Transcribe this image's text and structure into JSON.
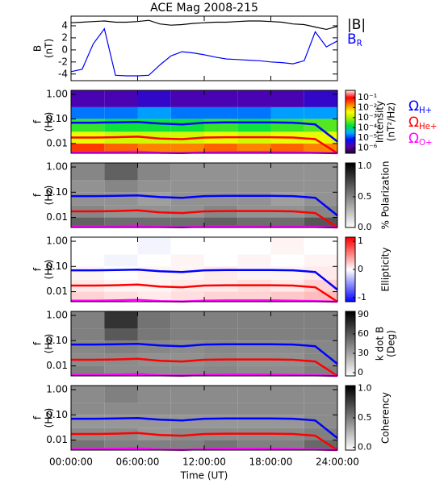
{
  "chart_data": [
    {
      "type": "line",
      "title": "ACE Mag 2008-215",
      "ylabel": [
        "B",
        "(nT)"
      ],
      "ylim": [
        -5.1,
        5.6
      ],
      "yticks": [
        -4,
        -2,
        0,
        2,
        4
      ],
      "x": [
        0,
        1,
        2,
        3,
        4,
        5,
        6,
        7,
        8,
        9,
        10,
        11,
        12,
        13,
        14,
        15,
        16,
        17,
        18,
        19,
        20,
        21,
        22,
        23,
        24
      ],
      "series": [
        {
          "name": "|B|",
          "color": "#000000",
          "values": [
            4.5,
            4.6,
            4.7,
            4.8,
            4.6,
            4.6,
            4.7,
            4.9,
            4.3,
            4.1,
            4.2,
            4.4,
            4.5,
            4.6,
            4.6,
            4.7,
            4.8,
            4.8,
            4.7,
            4.6,
            4.3,
            4.2,
            3.8,
            3.4,
            3.9
          ]
        },
        {
          "name": "B",
          "sub": "R",
          "color": "#0000ff",
          "values": [
            -3.6,
            -3.2,
            1,
            3.5,
            -4.2,
            -4.3,
            -4.3,
            -4.2,
            -2.5,
            -1,
            -0.3,
            -0.5,
            -0.8,
            -1.2,
            -1.5,
            -1.6,
            -1.7,
            -1.8,
            -2,
            -2.1,
            -2.3,
            -1.8,
            3,
            0.5,
            1.5
          ]
        }
      ]
    },
    {
      "type": "heatmap",
      "ylabel": [
        "f",
        "(Hz)"
      ],
      "ylog": true,
      "ylim": [
        0.004,
        1.45
      ],
      "yticks": [
        {
          "value": 0.01,
          "label": "0.01"
        },
        {
          "value": 0.1,
          "label": "0.10"
        },
        {
          "value": 1,
          "label": "1.00"
        }
      ],
      "xbins": [
        0,
        3,
        6,
        9,
        12,
        15,
        18,
        21,
        24
      ],
      "ybins": [
        0.004,
        0.01,
        0.03,
        0.1,
        0.3,
        1.45
      ],
      "z": [
        [
          0.05,
          0.03,
          0.02,
          0.02,
          0.03,
          0.02,
          0.03,
          0.02
        ],
        [
          0.003,
          0.002,
          0.002,
          0.002,
          0.003,
          0.002,
          0.003,
          0.003
        ],
        [
          0.0003,
          0.0002,
          0.0002,
          0.0002,
          0.0003,
          0.0002,
          0.0003,
          0.0004
        ],
        [
          2e-05,
          2e-05,
          3e-05,
          2e-05,
          2e-05,
          2e-05,
          3e-05,
          3e-05
        ],
        [
          2e-06,
          2e-06,
          3e-06,
          2e-06,
          2e-06,
          2e-06,
          2e-06,
          3e-06
        ]
      ],
      "colormap": "rainbow",
      "zlog": true,
      "zlim": [
        3e-07,
        0.5
      ],
      "zlabel": [
        "Intensity",
        "(nT²/Hz)"
      ],
      "zticks": [
        {
          "value": 1e-06,
          "label": "10⁻⁶"
        },
        {
          "value": 1e-05,
          "label": "10⁻⁵"
        },
        {
          "value": 0.0001,
          "label": "10⁻⁴"
        },
        {
          "value": 0.001,
          "label": "10⁻³"
        },
        {
          "value": 0.01,
          "label": "10⁻²"
        },
        {
          "value": 0.1,
          "label": "10⁻¹"
        }
      ],
      "lines_x": [
        0,
        2,
        4,
        6,
        8,
        10,
        12,
        14,
        16,
        18,
        20,
        22,
        24
      ],
      "series": [
        {
          "name": "Ω",
          "sub": "H+",
          "color": "#0000ff",
          "values": [
            0.07,
            0.07,
            0.072,
            0.075,
            0.065,
            0.06,
            0.07,
            0.072,
            0.072,
            0.072,
            0.07,
            0.06,
            0.012
          ]
        },
        {
          "name": "Ω",
          "sub": "He+",
          "color": "#ff0000",
          "values": [
            0.0175,
            0.0175,
            0.018,
            0.019,
            0.016,
            0.015,
            0.0175,
            0.018,
            0.018,
            0.018,
            0.0175,
            0.015,
            0.004
          ]
        },
        {
          "name": "Ω",
          "sub": "O+",
          "color": "#ff00ff",
          "values": [
            0.0044,
            0.0044,
            0.0045,
            0.0047,
            0.0042,
            0.0041,
            0.0044,
            0.0045,
            0.0045,
            0.0045,
            0.0044,
            0.0042,
            0.004
          ]
        }
      ]
    },
    {
      "type": "heatmap",
      "ylabel": [
        "f",
        "(Hz)"
      ],
      "ylog": true,
      "ylim": [
        0.004,
        1.45
      ],
      "yticks": [
        {
          "value": 0.01,
          "label": "0.01"
        },
        {
          "value": 0.1,
          "label": "0.10"
        },
        {
          "value": 1,
          "label": "1.00"
        }
      ],
      "xbins": [
        0,
        3,
        6,
        9,
        12,
        15,
        18,
        21,
        24
      ],
      "ybins": [
        0.004,
        0.01,
        0.03,
        0.1,
        0.3,
        1.45
      ],
      "z": [
        [
          0.65,
          0.6,
          0.6,
          0.6,
          0.65,
          0.6,
          0.6,
          0.7
        ],
        [
          0.5,
          0.45,
          0.45,
          0.45,
          0.5,
          0.45,
          0.45,
          0.5
        ],
        [
          0.45,
          0.45,
          0.4,
          0.45,
          0.45,
          0.45,
          0.4,
          0.45
        ],
        [
          0.45,
          0.5,
          0.45,
          0.45,
          0.45,
          0.45,
          0.45,
          0.45
        ],
        [
          0.5,
          0.65,
          0.5,
          0.45,
          0.45,
          0.45,
          0.45,
          0.45
        ]
      ],
      "colormap": "gray",
      "zlim": [
        0,
        1.05
      ],
      "zlabel": [
        "% Polarization"
      ],
      "zticks": [
        {
          "value": 0,
          "label": "0.0"
        },
        {
          "value": 0.5,
          "label": "0.5"
        },
        {
          "value": 1,
          "label": "1.0"
        }
      ]
    },
    {
      "type": "heatmap",
      "ylabel": [
        "f",
        "(Hz)"
      ],
      "ylog": true,
      "ylim": [
        0.004,
        1.45
      ],
      "yticks": [
        {
          "value": 0.01,
          "label": "0.01"
        },
        {
          "value": 0.1,
          "label": "0.10"
        },
        {
          "value": 1,
          "label": "1.00"
        }
      ],
      "xbins": [
        0,
        3,
        6,
        9,
        12,
        15,
        18,
        21,
        24
      ],
      "ybins": [
        0.004,
        0.01,
        0.03,
        0.1,
        0.3,
        1.45
      ],
      "z": [
        [
          0.2,
          0.15,
          0.1,
          0.15,
          0.2,
          0.2,
          0.25,
          0.3
        ],
        [
          0.1,
          0.05,
          0.05,
          0.1,
          0.1,
          0.15,
          0.1,
          0.2
        ],
        [
          0.05,
          0,
          0.05,
          0.05,
          0.1,
          0.05,
          0.05,
          0.1
        ],
        [
          0,
          -0.05,
          0,
          0.05,
          0,
          0.05,
          0,
          0.05
        ],
        [
          0,
          0,
          -0.05,
          0,
          0,
          0,
          0.05,
          0
        ]
      ],
      "colormap": "bwr",
      "zlim": [
        -1.15,
        1.15
      ],
      "zlabel": [
        "Ellipticity"
      ],
      "zticks": [
        -1,
        0,
        1
      ]
    },
    {
      "type": "heatmap",
      "ylabel": [
        "f",
        "(Hz)"
      ],
      "ylog": true,
      "ylim": [
        0.004,
        1.45
      ],
      "yticks": [
        {
          "value": 0.01,
          "label": "0.01"
        },
        {
          "value": 0.1,
          "label": "0.10"
        },
        {
          "value": 1,
          "label": "1.00"
        }
      ],
      "xbins": [
        0,
        3,
        6,
        9,
        12,
        15,
        18,
        21,
        24
      ],
      "ybins": [
        0.004,
        0.01,
        0.03,
        0.1,
        0.3,
        1.45
      ],
      "z": [
        [
          45,
          40,
          40,
          40,
          42,
          40,
          40,
          45
        ],
        [
          40,
          40,
          38,
          38,
          40,
          38,
          38,
          42
        ],
        [
          42,
          45,
          42,
          40,
          42,
          40,
          40,
          42
        ],
        [
          45,
          60,
          48,
          45,
          45,
          45,
          45,
          45
        ],
        [
          45,
          75,
          50,
          45,
          45,
          45,
          45,
          45
        ]
      ],
      "colormap": "gray",
      "zlim": [
        -5,
        95
      ],
      "zlabel": [
        "k dot B",
        "(Deg)"
      ],
      "zticks": [
        0,
        30,
        60,
        90
      ]
    },
    {
      "type": "heatmap",
      "ylabel": [
        "f",
        "(Hz)"
      ],
      "ylog": true,
      "ylim": [
        0.004,
        1.45
      ],
      "yticks": [
        {
          "value": 0.01,
          "label": "0.01"
        },
        {
          "value": 0.1,
          "label": "0.10"
        },
        {
          "value": 1,
          "label": "1.00"
        }
      ],
      "xbins": [
        0,
        3,
        6,
        9,
        12,
        15,
        18,
        21,
        24
      ],
      "ybins": [
        0.004,
        0.01,
        0.03,
        0.1,
        0.3,
        1.45
      ],
      "z": [
        [
          0.55,
          0.5,
          0.5,
          0.5,
          0.55,
          0.5,
          0.5,
          0.6
        ],
        [
          0.45,
          0.45,
          0.4,
          0.45,
          0.45,
          0.45,
          0.45,
          0.5
        ],
        [
          0.4,
          0.4,
          0.4,
          0.4,
          0.4,
          0.4,
          0.4,
          0.45
        ],
        [
          0.45,
          0.45,
          0.45,
          0.45,
          0.45,
          0.45,
          0.45,
          0.45
        ],
        [
          0.45,
          0.5,
          0.45,
          0.45,
          0.45,
          0.45,
          0.45,
          0.45
        ]
      ],
      "colormap": "gray",
      "zlim": [
        -0.05,
        1.05
      ],
      "zlabel": [
        "Coherency"
      ],
      "zticks": [
        {
          "value": 0,
          "label": "0.0"
        },
        {
          "value": 0.5,
          "label": "0.5"
        },
        {
          "value": 1,
          "label": "1.0"
        }
      ],
      "xlim": [
        0,
        24
      ],
      "xlabel": "Time (UT)",
      "xticks": [
        {
          "value": 0,
          "label": "00:00:00"
        },
        {
          "value": 6,
          "label": "06:00:00"
        },
        {
          "value": 12,
          "label": "12:00:00"
        },
        {
          "value": 18,
          "label": "18:00:00"
        },
        {
          "value": 24,
          "label": "24:00:00"
        }
      ]
    }
  ]
}
